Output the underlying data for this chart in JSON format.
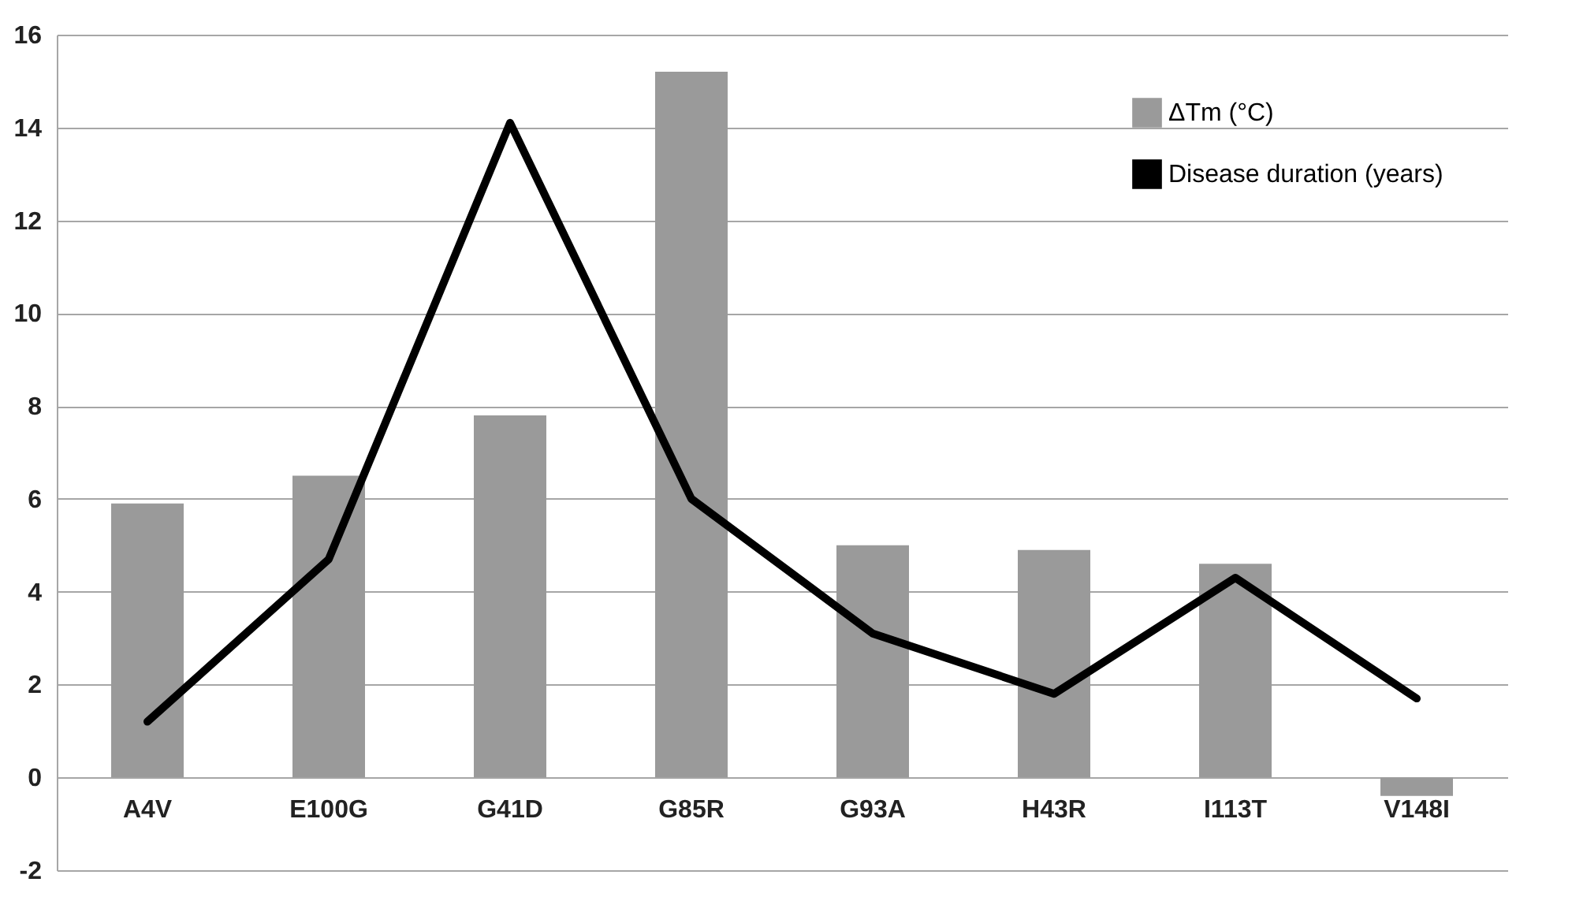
{
  "chart_data": {
    "type": "bar",
    "categories": [
      "A4V",
      "E100G",
      "G41D",
      "G85R",
      "G93A",
      "H43R",
      "I113T",
      "V148I"
    ],
    "series": [
      {
        "name": "ΔTm (°C)",
        "color": "#9a9a9a",
        "values": [
          5.9,
          6.5,
          7.8,
          15.2,
          5.0,
          4.9,
          4.6,
          -0.4
        ]
      },
      {
        "name": "Disease duration (years)",
        "type": "line",
        "color": "#000000",
        "values": [
          1.2,
          4.7,
          14.1,
          6.0,
          3.1,
          1.8,
          4.3,
          1.7
        ]
      }
    ],
    "ylim": [
      -2,
      16
    ],
    "yticks": [
      -2,
      0,
      2,
      4,
      6,
      8,
      10,
      12,
      14,
      16
    ],
    "grid": "y",
    "legend": "top right",
    "marker": "none",
    "line_style": "solid"
  }
}
